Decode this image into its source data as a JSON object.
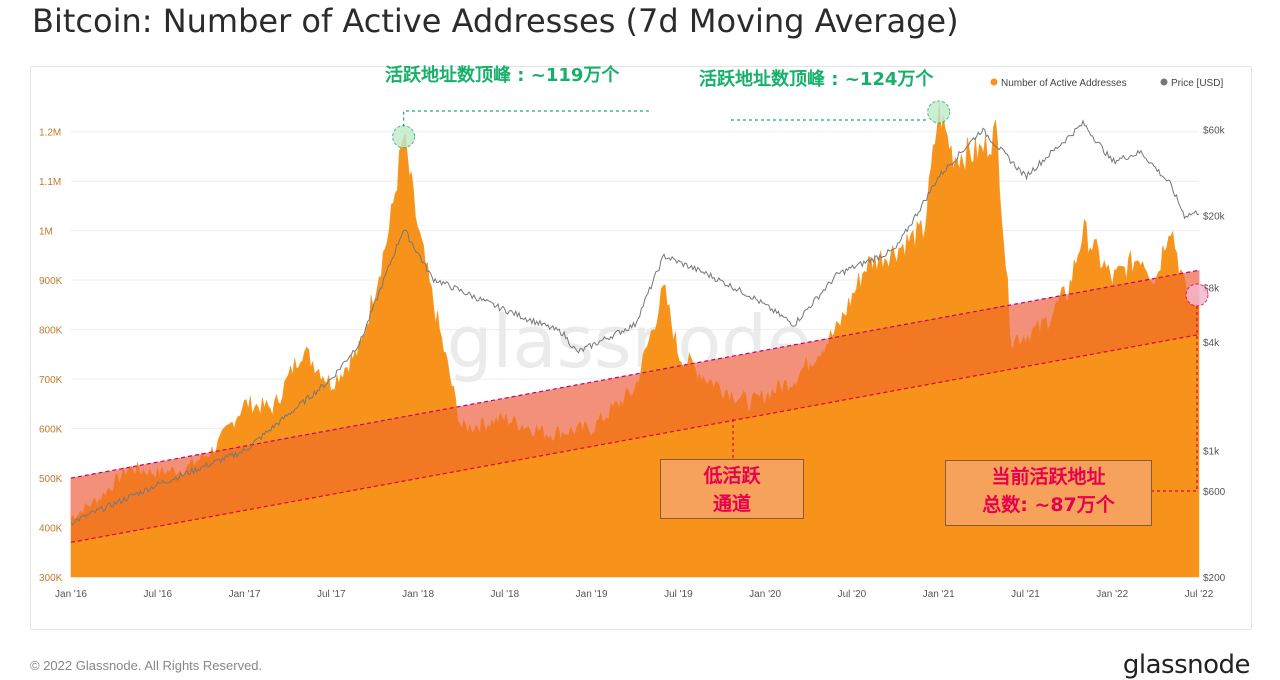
{
  "title": "Bitcoin: Number of Active Addresses (7d Moving Average)",
  "footer": "© 2022 Glassnode. All Rights Reserved.",
  "logo": "glassnode",
  "watermark": "glassnode",
  "annotations": {
    "peak_2018": "活跃地址数顶峰 : ~119万个",
    "peak_2021": "活跃地址数顶峰 : ~124万个",
    "channel_line1": "低活跃",
    "channel_line2": "通道",
    "current_line1": "当前活跃地址",
    "current_line2": "总数: ~87万个"
  },
  "colors": {
    "addresses": "#f7931a",
    "price": "#777777",
    "channel": "#f0622e",
    "deficit": "#f7c8d4",
    "annotation_green": "#16b06b",
    "annotation_red": "#e6004e"
  },
  "chart_data": {
    "type": "area",
    "title": "Bitcoin: Number of Active Addresses (7d Moving Average)",
    "legend": {
      "placement": "top-right",
      "entries": [
        "Number of Active Addresses",
        "Price [USD]"
      ]
    },
    "x_ticks": [
      "Jan '16",
      "Jul '16",
      "Jan '17",
      "Jul '17",
      "Jan '18",
      "Jul '18",
      "Jan '19",
      "Jul '19",
      "Jan '20",
      "Jul '20",
      "Jan '21",
      "Jul '21",
      "Jan '22",
      "Jul '22"
    ],
    "y_left": {
      "ticks": [
        "300K",
        "400K",
        "500K",
        "600K",
        "700K",
        "800K",
        "900K",
        "1M",
        "1.1M",
        "1.2M"
      ],
      "range": [
        300000,
        1250000
      ]
    },
    "y_right": {
      "scale": "log",
      "ticks": [
        "$200",
        "$600",
        "$1k",
        "$4k",
        "$8k",
        "$20k",
        "$60k"
      ],
      "range": [
        200,
        80000
      ]
    },
    "grid": true,
    "series": [
      {
        "name": "Number of Active Addresses",
        "x": [
          "Jan '16",
          "Mar '16",
          "May '16",
          "Jul '16",
          "Sep '16",
          "Nov '16",
          "Jan '17",
          "Mar '17",
          "May '17",
          "Jul '17",
          "Sep '17",
          "Nov '17",
          "Dec '17",
          "Jan '18",
          "Feb '18",
          "Apr '18",
          "Jul '18",
          "Oct '18",
          "Jan '19",
          "Apr '19",
          "Jun '19",
          "Jul '19",
          "Sep '19",
          "Dec '19",
          "Mar '20",
          "Jun '20",
          "Aug '20",
          "Oct '20",
          "Dec '20",
          "Jan '21",
          "Feb '21",
          "Apr '21",
          "May '21",
          "Jun '21",
          "Aug '21",
          "Oct '21",
          "Nov '21",
          "Jan '22",
          "Mar '22",
          "Apr '22",
          "May '22",
          "Jun '22",
          "Jul '22"
        ],
        "values": [
          420000,
          460000,
          520000,
          510000,
          520000,
          560000,
          650000,
          640000,
          760000,
          690000,
          760000,
          1000000,
          1190000,
          1000000,
          860000,
          600000,
          620000,
          590000,
          600000,
          680000,
          880000,
          750000,
          700000,
          650000,
          700000,
          800000,
          930000,
          960000,
          1000000,
          1240000,
          1150000,
          1160000,
          1200000,
          780000,
          800000,
          880000,
          1000000,
          900000,
          950000,
          900000,
          1020000,
          880000,
          870000
        ]
      },
      {
        "name": "Price [USD]",
        "x": [
          "Jan '16",
          "Jul '16",
          "Jan '17",
          "Jul '17",
          "Sep '17",
          "Dec '17",
          "Feb '18",
          "Jun '18",
          "Nov '18",
          "Dec '18",
          "Apr '19",
          "Jun '19",
          "Sep '19",
          "Dec '19",
          "Mar '20",
          "Jun '20",
          "Oct '20",
          "Dec '20",
          "Jan '21",
          "Apr '21",
          "Jul '21",
          "Nov '21",
          "Jan '22",
          "Mar '22",
          "May '22",
          "Jun '22",
          "Jul '22"
        ],
        "values": [
          400,
          650,
          1000,
          2500,
          4000,
          17000,
          9000,
          6500,
          4500,
          3500,
          5000,
          12000,
          9500,
          7200,
          5000,
          9500,
          13000,
          24000,
          33000,
          60000,
          33000,
          65000,
          40000,
          45000,
          30000,
          20000,
          21000
        ]
      }
    ],
    "channel": {
      "upper": [
        [
          "Jan '16",
          500000
        ],
        [
          "Jul '22",
          920000
        ]
      ],
      "lower": [
        [
          "Jan '16",
          370000
        ],
        [
          "Jul '22",
          790000
        ]
      ]
    }
  }
}
